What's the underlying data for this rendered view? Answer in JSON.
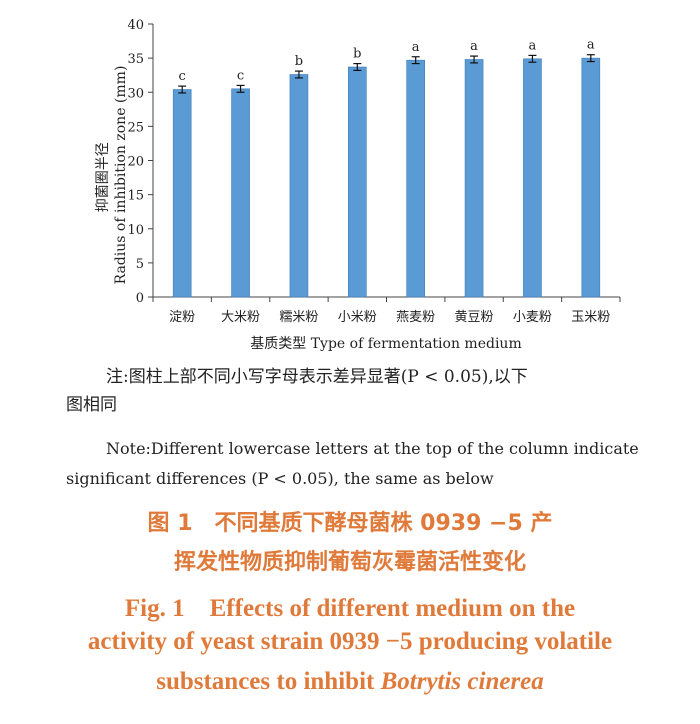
{
  "chart_data": {
    "type": "bar",
    "categories": [
      "淀粉",
      "大米粉",
      "糯米粉",
      "小米粉",
      "燕麦粉",
      "黄豆粉",
      "小麦粉",
      "玉米粉"
    ],
    "values": [
      30.4,
      30.5,
      32.6,
      33.7,
      34.7,
      34.8,
      34.9,
      35.0
    ],
    "errors": [
      0.5,
      0.5,
      0.5,
      0.5,
      0.5,
      0.5,
      0.5,
      0.5
    ],
    "letters": [
      "c",
      "c",
      "b",
      "b",
      "a",
      "a",
      "a",
      "a"
    ],
    "ylim": [
      0,
      40
    ],
    "yticks": [
      "0",
      "5",
      "10",
      "15",
      "20",
      "25",
      "30",
      "35",
      "40"
    ],
    "ylabel_cn": "抑菌圈半径",
    "ylabel_en": "Radius of inhibition zone (mm)",
    "xlabel": "基质类型 Type of fermentation medium",
    "bar_color": "#5b9bd5"
  },
  "notes": {
    "cn_line1": "注:图柱上部不同小写字母表示差异显著(P < 0.05),以下",
    "cn_line2": "图相同",
    "en_line1": "Note:Different lowercase letters at the top of the column indicate",
    "en_line2": "significant differences (P < 0.05), the same as below"
  },
  "caption": {
    "cn_line1": "图 1　不同基质下酵母菌株 0939 −5 产",
    "cn_line2": "挥发性物质抑制葡萄灰霉菌活性变化",
    "en_line1": "Fig. 1　Effects of different medium on the",
    "en_line2": "activity of yeast strain 0939 −5 producing volatile",
    "en_line3_prefix": "substances to inhibit ",
    "en_line3_italic": "Botrytis cinerea"
  },
  "colors": {
    "caption": "#e07a3a",
    "bar": "#5b9bd5"
  }
}
